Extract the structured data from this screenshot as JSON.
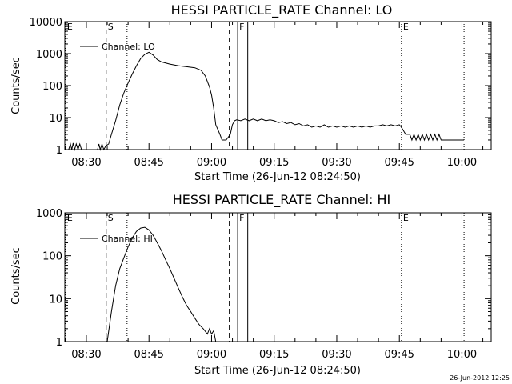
{
  "chart_data": [
    {
      "type": "line",
      "title": "HESSI PARTICLE_RATE Channel: LO",
      "xlabel": "Start Time (26-Jun-12 08:24:50)",
      "ylabel": "Counts/sec",
      "y_scale": "log",
      "ylim": [
        1,
        10000
      ],
      "y_ticks": [
        1,
        10,
        100,
        1000,
        10000
      ],
      "y_tick_labels": [
        "1",
        "10",
        "100",
        "1000",
        "10000"
      ],
      "xlim": [
        "08:24:50",
        "10:07:00"
      ],
      "x_ticks": [
        "08:30",
        "08:45",
        "09:00",
        "09:15",
        "09:30",
        "09:45",
        "10:00"
      ],
      "grid": false,
      "legend": {
        "position": "top-left",
        "entries": [
          "Channel: LO"
        ]
      },
      "markers": [
        {
          "label": "E",
          "time": "08:25:00",
          "style": "dotted"
        },
        {
          "label": "S",
          "time": "08:34:45",
          "style": "dashed"
        },
        {
          "label": "",
          "time": "08:39:45",
          "style": "dotted"
        },
        {
          "label": "",
          "time": "09:04:15",
          "style": "dashed"
        },
        {
          "label": "F",
          "time": "09:06:15",
          "style": "solid"
        },
        {
          "label": "",
          "time": "09:08:40",
          "style": "solid"
        },
        {
          "label": "E",
          "time": "09:45:30",
          "style": "dotted"
        },
        {
          "label": "",
          "time": "10:00:30",
          "style": "dotted"
        }
      ],
      "series": [
        {
          "name": "Channel: LO",
          "points": [
            [
              "08:25:45",
              1
            ],
            [
              "08:26:10",
              1.5
            ],
            [
              "08:26:30",
              1
            ],
            [
              "08:26:50",
              1.6
            ],
            [
              "08:27:10",
              1
            ],
            [
              "08:27:35",
              1.5
            ],
            [
              "08:28:00",
              1
            ],
            [
              "08:28:25",
              1.5
            ],
            [
              "08:28:50",
              1
            ],
            [
              "08:32:40",
              1
            ],
            [
              "08:33:00",
              1.5
            ],
            [
              "08:33:20",
              1
            ],
            [
              "08:33:45",
              1.5
            ],
            [
              "08:34:10",
              1
            ],
            [
              "08:34:40",
              1.3
            ],
            [
              "08:35:20",
              1.5
            ],
            [
              "08:36:00",
              3
            ],
            [
              "08:37:00",
              8
            ],
            [
              "08:38:00",
              25
            ],
            [
              "08:39:00",
              60
            ],
            [
              "08:40:00",
              120
            ],
            [
              "08:41:00",
              230
            ],
            [
              "08:42:00",
              420
            ],
            [
              "08:43:00",
              700
            ],
            [
              "08:44:00",
              950
            ],
            [
              "08:45:00",
              1100
            ],
            [
              "08:46:00",
              900
            ],
            [
              "08:47:00",
              650
            ],
            [
              "08:48:00",
              550
            ],
            [
              "08:50:00",
              470
            ],
            [
              "08:52:00",
              420
            ],
            [
              "08:54:00",
              390
            ],
            [
              "08:56:00",
              360
            ],
            [
              "08:57:30",
              300
            ],
            [
              "08:58:30",
              200
            ],
            [
              "08:59:30",
              90
            ],
            [
              "09:00:00",
              50
            ],
            [
              "09:00:30",
              20
            ],
            [
              "09:01:00",
              6
            ],
            [
              "09:02:00",
              3
            ],
            [
              "09:02:30",
              2
            ],
            [
              "09:03:30",
              2
            ],
            [
              "09:04:30",
              3
            ],
            [
              "09:05:00",
              6
            ],
            [
              "09:05:30",
              8
            ],
            [
              "09:06:00",
              8.5
            ],
            [
              "09:07:00",
              8
            ],
            [
              "09:08:00",
              9
            ],
            [
              "09:09:00",
              8
            ],
            [
              "09:10:00",
              9
            ],
            [
              "09:11:00",
              8
            ],
            [
              "09:12:00",
              9
            ],
            [
              "09:13:00",
              8
            ],
            [
              "09:14:00",
              8.5
            ],
            [
              "09:15:00",
              8
            ],
            [
              "09:16:00",
              7
            ],
            [
              "09:17:00",
              7.5
            ],
            [
              "09:18:00",
              6.5
            ],
            [
              "09:19:00",
              7
            ],
            [
              "09:20:00",
              6
            ],
            [
              "09:21:00",
              6.5
            ],
            [
              "09:22:00",
              5.5
            ],
            [
              "09:23:00",
              6
            ],
            [
              "09:24:00",
              5
            ],
            [
              "09:25:00",
              5.5
            ],
            [
              "09:26:00",
              5
            ],
            [
              "09:27:00",
              6
            ],
            [
              "09:28:00",
              5
            ],
            [
              "09:29:00",
              5.5
            ],
            [
              "09:30:00",
              5
            ],
            [
              "09:31:00",
              5.5
            ],
            [
              "09:32:00",
              5
            ],
            [
              "09:33:00",
              5.5
            ],
            [
              "09:34:00",
              5
            ],
            [
              "09:35:00",
              5.5
            ],
            [
              "09:36:00",
              5
            ],
            [
              "09:37:00",
              5.5
            ],
            [
              "09:38:00",
              5
            ],
            [
              "09:39:00",
              5.5
            ],
            [
              "09:40:00",
              5.5
            ],
            [
              "09:41:00",
              6
            ],
            [
              "09:42:00",
              5.5
            ],
            [
              "09:43:00",
              6
            ],
            [
              "09:44:00",
              5.5
            ],
            [
              "09:45:00",
              6
            ],
            [
              "09:45:30",
              5
            ],
            [
              "09:46:30",
              3
            ],
            [
              "09:47:30",
              3
            ],
            [
              "09:48:00",
              2
            ],
            [
              "09:48:30",
              3
            ],
            [
              "09:49:00",
              2
            ],
            [
              "09:49:30",
              3
            ],
            [
              "09:50:00",
              2
            ],
            [
              "09:50:30",
              3
            ],
            [
              "09:51:00",
              2
            ],
            [
              "09:51:30",
              3
            ],
            [
              "09:52:00",
              2
            ],
            [
              "09:52:30",
              3
            ],
            [
              "09:53:00",
              2
            ],
            [
              "09:53:30",
              3
            ],
            [
              "09:54:00",
              2
            ],
            [
              "09:54:30",
              3
            ],
            [
              "09:55:00",
              2
            ],
            [
              "09:55:30",
              2
            ],
            [
              "10:00:30",
              2
            ]
          ]
        }
      ]
    },
    {
      "type": "line",
      "title": "HESSI PARTICLE_RATE Channel: HI",
      "xlabel": "Start Time (26-Jun-12 08:24:50)",
      "ylabel": "Counts/sec",
      "y_scale": "log",
      "ylim": [
        1,
        1000
      ],
      "y_ticks": [
        1,
        10,
        100,
        1000
      ],
      "y_tick_labels": [
        "1",
        "10",
        "100",
        "1000"
      ],
      "xlim": [
        "08:24:50",
        "10:07:00"
      ],
      "x_ticks": [
        "08:30",
        "08:45",
        "09:00",
        "09:15",
        "09:30",
        "09:45",
        "10:00"
      ],
      "grid": false,
      "legend": {
        "position": "top-left",
        "entries": [
          "Channel: HI"
        ]
      },
      "markers": [
        {
          "label": "E",
          "time": "08:25:00",
          "style": "dotted"
        },
        {
          "label": "S",
          "time": "08:34:45",
          "style": "dashed"
        },
        {
          "label": "",
          "time": "08:39:45",
          "style": "dotted"
        },
        {
          "label": "",
          "time": "09:04:15",
          "style": "dashed"
        },
        {
          "label": "F",
          "time": "09:06:15",
          "style": "solid"
        },
        {
          "label": "",
          "time": "09:08:40",
          "style": "solid"
        },
        {
          "label": "E",
          "time": "09:45:30",
          "style": "dotted"
        },
        {
          "label": "",
          "time": "10:00:30",
          "style": "dotted"
        }
      ],
      "series": [
        {
          "name": "Channel: HI",
          "points": [
            [
              "08:35:00",
              1
            ],
            [
              "08:36:00",
              5
            ],
            [
              "08:37:00",
              20
            ],
            [
              "08:38:00",
              50
            ],
            [
              "08:39:00",
              90
            ],
            [
              "08:40:00",
              160
            ],
            [
              "08:41:00",
              260
            ],
            [
              "08:42:00",
              370
            ],
            [
              "08:43:00",
              440
            ],
            [
              "08:44:00",
              460
            ],
            [
              "08:45:00",
              400
            ],
            [
              "08:46:00",
              300
            ],
            [
              "08:47:00",
              200
            ],
            [
              "08:48:00",
              130
            ],
            [
              "08:49:00",
              80
            ],
            [
              "08:50:00",
              50
            ],
            [
              "08:51:00",
              30
            ],
            [
              "08:52:00",
              18
            ],
            [
              "08:53:00",
              11
            ],
            [
              "08:54:00",
              7
            ],
            [
              "08:55:00",
              5
            ],
            [
              "08:56:00",
              3.5
            ],
            [
              "08:57:00",
              2.5
            ],
            [
              "08:58:00",
              2
            ],
            [
              "08:59:00",
              1.5
            ],
            [
              "08:59:30",
              2
            ],
            [
              "09:00:00",
              1.5
            ],
            [
              "09:00:30",
              1.8
            ],
            [
              "09:01:00",
              1
            ]
          ]
        }
      ]
    }
  ],
  "footer": {
    "timestamp": "26-Jun-2012 12:25"
  }
}
